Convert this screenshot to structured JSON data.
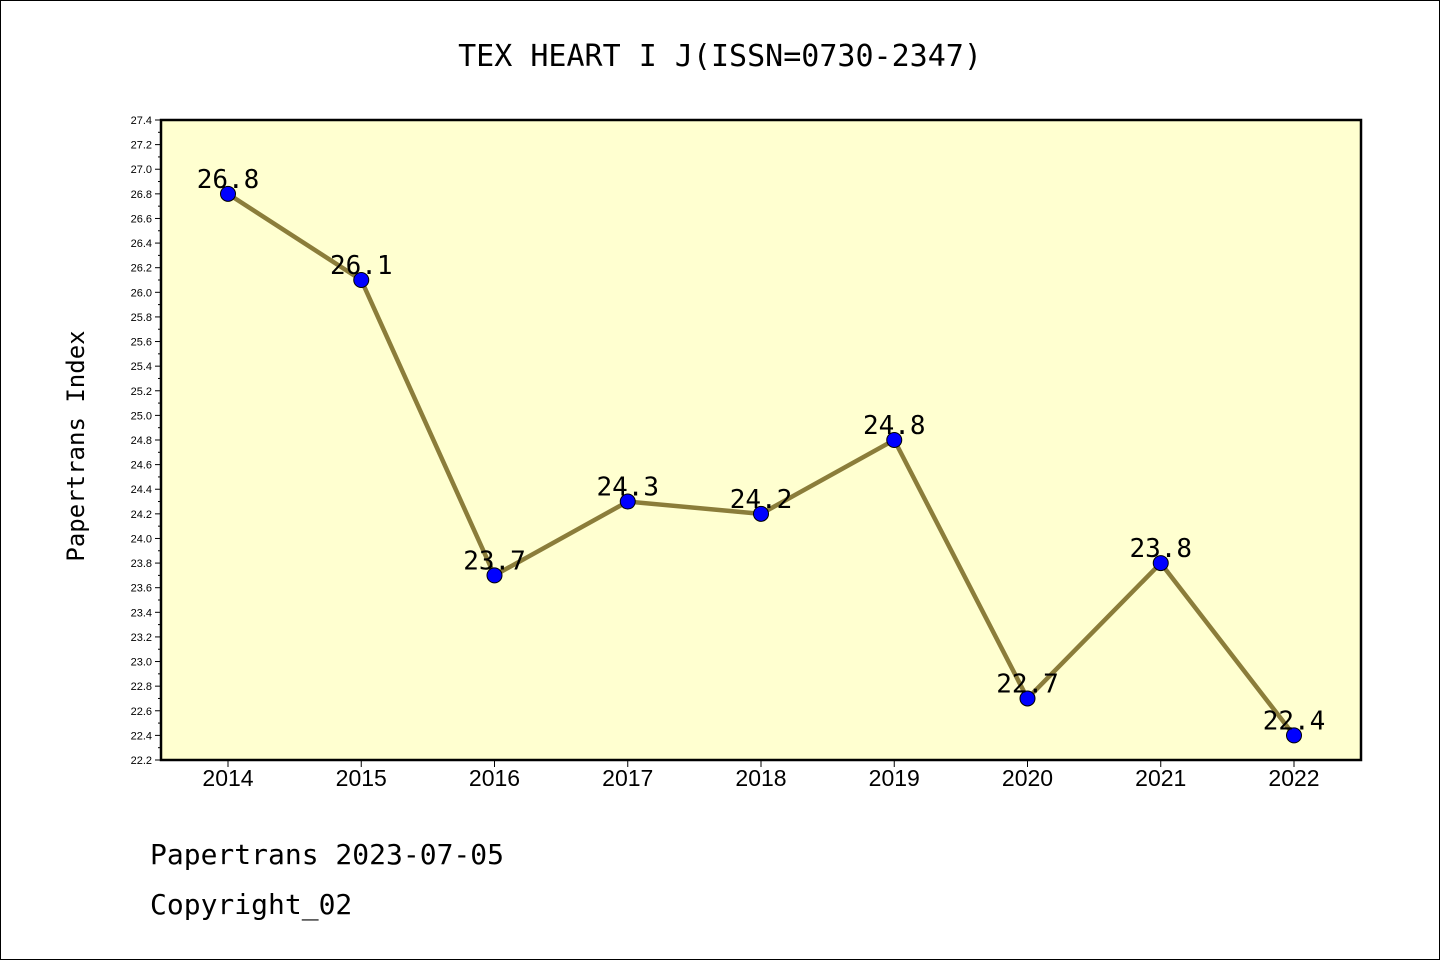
{
  "chart_data": {
    "type": "line",
    "title": "TEX HEART I J(ISSN=0730-2347)",
    "ylabel": "Papertrans Index",
    "xlabel": "",
    "categories": [
      "2014",
      "2015",
      "2016",
      "2017",
      "2018",
      "2019",
      "2020",
      "2021",
      "2022"
    ],
    "series": [
      {
        "values": [
          26.8,
          26.1,
          23.7,
          24.3,
          24.2,
          24.8,
          22.7,
          23.8,
          22.4
        ]
      }
    ],
    "data_labels": [
      "26.8",
      "26.1",
      "23.7",
      "24.3",
      "24.2",
      "24.8",
      "22.7",
      "23.8",
      "22.4"
    ],
    "ylim": [
      22.2,
      27.4
    ],
    "yticks": [
      "22.2",
      "22.4",
      "22.6",
      "22.8",
      "23.0",
      "23.2",
      "23.4",
      "23.6",
      "23.8",
      "24.0",
      "24.2",
      "24.4",
      "24.6",
      "24.8",
      "25.0",
      "25.2",
      "25.4",
      "25.6",
      "25.8",
      "26.0",
      "26.2",
      "26.4",
      "26.6",
      "26.8",
      "27.0",
      "27.2",
      "27.4"
    ],
    "grid": false,
    "legend": "none",
    "colors": {
      "plot_background": "#ffffd0",
      "line": "#8b7d3a",
      "marker": "#0000ff"
    }
  },
  "footer": {
    "line1": "Papertrans 2023-07-05",
    "line2": "Copyright_02"
  }
}
